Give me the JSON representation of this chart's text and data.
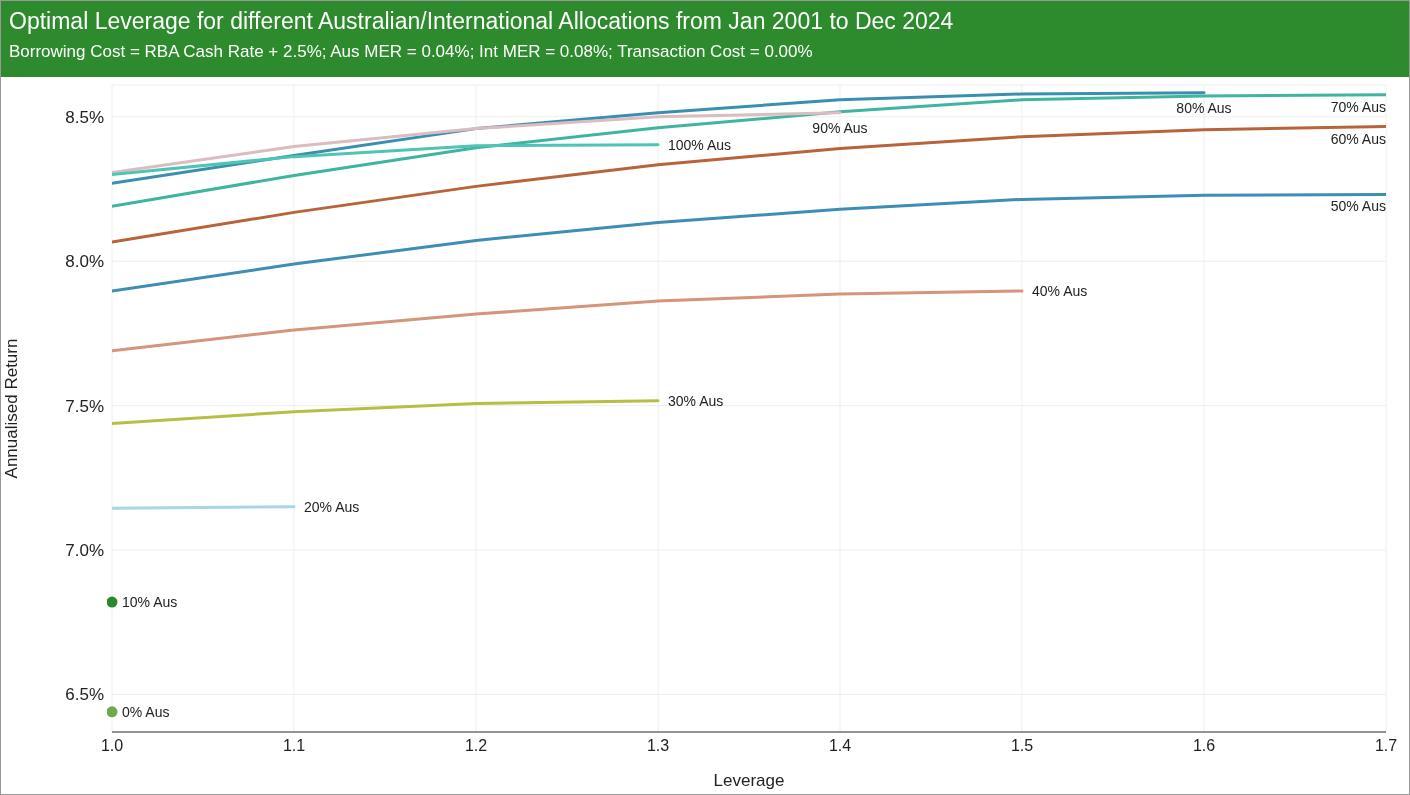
{
  "chart_data": {
    "type": "line",
    "title": "Optimal Leverage for different Australian/International Allocations from Jan 2001 to Dec 2024",
    "subtitle": "Borrowing Cost = RBA Cash Rate + 2.5%; Aus MER = 0.04%; Int MER = 0.08%; Transaction Cost = 0.00%",
    "xlabel": "Leverage",
    "ylabel": "Annualised Return",
    "x": [
      1.0,
      1.1,
      1.2,
      1.3,
      1.4,
      1.5,
      1.6,
      1.7
    ],
    "series": [
      {
        "name": "0% Aus",
        "color": "#70a84a",
        "marker": "circle",
        "values": [
          6.44,
          null,
          null,
          null,
          null,
          null,
          null,
          null
        ]
      },
      {
        "name": "10% Aus",
        "color": "#2a8a2a",
        "marker": "circle",
        "values": [
          6.82,
          null,
          null,
          null,
          null,
          null,
          null,
          null
        ]
      },
      {
        "name": "20% Aus",
        "color": "#a8d4e6",
        "values": [
          7.145,
          7.15,
          null,
          null,
          null,
          null,
          null,
          null
        ]
      },
      {
        "name": "30% Aus",
        "color": "#b5c040",
        "values": [
          7.438,
          7.479,
          7.507,
          7.517,
          null,
          null,
          null,
          null
        ]
      },
      {
        "name": "40% Aus",
        "color": "#d4957a",
        "values": [
          7.69,
          7.762,
          7.817,
          7.862,
          7.886,
          7.897,
          null,
          null
        ]
      },
      {
        "name": "50% Aus",
        "color": "#3d8db5",
        "values": [
          7.897,
          7.99,
          8.072,
          8.134,
          8.18,
          8.214,
          8.228,
          8.231
        ]
      },
      {
        "name": "60% Aus",
        "color": "#b8643a",
        "values": [
          8.066,
          8.169,
          8.259,
          8.334,
          8.39,
          8.431,
          8.455,
          8.466
        ]
      },
      {
        "name": "70% Aus",
        "color": "#3fb5a0",
        "values": [
          8.19,
          8.297,
          8.393,
          8.462,
          8.517,
          8.559,
          8.572,
          8.576
        ]
      },
      {
        "name": "80% Aus",
        "color": "#3a8fb0",
        "values": [
          8.27,
          8.366,
          8.459,
          8.514,
          8.559,
          8.579,
          8.583,
          null
        ]
      },
      {
        "name": "90% Aus",
        "color": "#dbbcc0",
        "values": [
          8.307,
          8.397,
          8.459,
          8.5,
          8.514,
          null,
          null,
          null
        ]
      },
      {
        "name": "100% Aus",
        "color": "#4dc4b4",
        "values": [
          8.3,
          8.362,
          8.4,
          8.403,
          null,
          null,
          null,
          null
        ]
      }
    ],
    "xlim": [
      1.0,
      1.7
    ],
    "xticks": [
      {
        "value": 1,
        "label": "1.0"
      },
      {
        "value": 1.1,
        "label": "1.1"
      },
      {
        "value": 1.2,
        "label": "1.2"
      },
      {
        "value": 1.3,
        "label": "1.3"
      },
      {
        "value": 1.4,
        "label": "1.4"
      },
      {
        "value": 1.5,
        "label": "1.5"
      },
      {
        "value": 1.6,
        "label": "1.6"
      },
      {
        "value": 1.7,
        "label": "1.7"
      }
    ],
    "ylim": [
      6.37,
      8.61
    ],
    "yticks": [
      {
        "value": 6.5,
        "label": "6.5%"
      },
      {
        "value": 7,
        "label": "7.0%"
      },
      {
        "value": 7.5,
        "label": "7.5%"
      },
      {
        "value": 8,
        "label": "8.0%"
      },
      {
        "value": 8.5,
        "label": "8.5%"
      }
    ],
    "grid": true,
    "legend": false,
    "marker": "none",
    "line_style": "solid"
  }
}
